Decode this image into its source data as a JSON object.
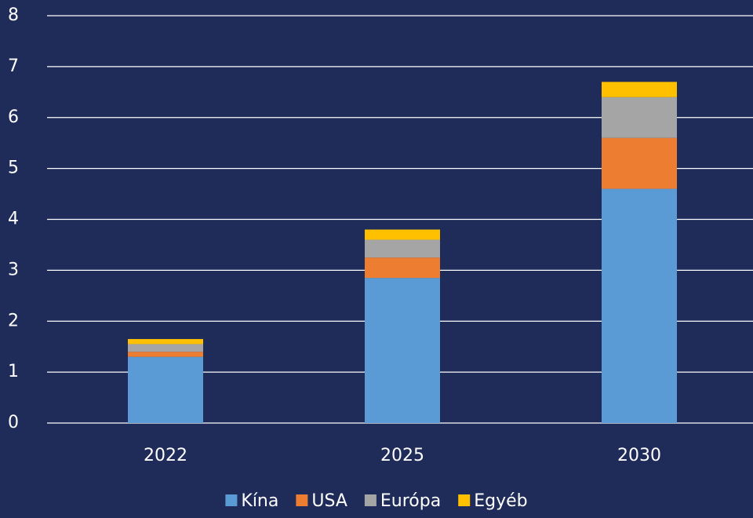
{
  "chart_data": {
    "type": "stacked_bar",
    "categories": [
      "2022",
      "2025",
      "2030"
    ],
    "series": [
      {
        "name": "Kína",
        "color": "#5b9bd5",
        "values": [
          1.3,
          2.85,
          4.6
        ]
      },
      {
        "name": "USA",
        "color": "#ed7d31",
        "values": [
          0.1,
          0.4,
          1.0
        ]
      },
      {
        "name": "Európa",
        "color": "#a5a5a5",
        "values": [
          0.15,
          0.35,
          0.8
        ]
      },
      {
        "name": "Egyéb",
        "color": "#ffc000",
        "values": [
          0.1,
          0.2,
          0.3
        ]
      }
    ],
    "ylim": [
      0,
      8
    ],
    "yticks": [
      0,
      1,
      2,
      3,
      4,
      5,
      6,
      7,
      8
    ],
    "grid": true,
    "legend": "bottom"
  }
}
